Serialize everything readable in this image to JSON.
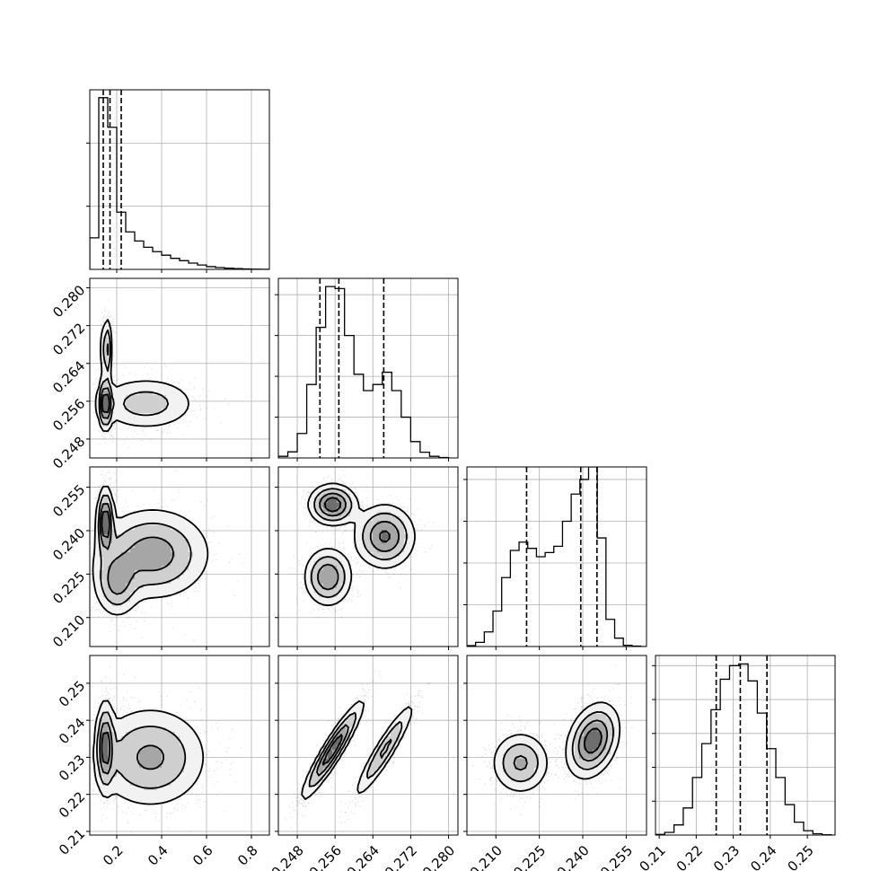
{
  "chart_data": {
    "type": "corner",
    "parameters": 4,
    "grid": true,
    "style": {
      "line_color": "#000000",
      "grid_color": "#b0b0b0",
      "point_color": "#000000",
      "contour_fill_shades": [
        "#f2f2f2",
        "#cfcfcf",
        "#a6a6a6",
        "#6e6e6e"
      ],
      "density_dark": "#000000"
    },
    "axes": [
      {
        "index": 0,
        "range": [
          0.08,
          0.88
        ],
        "ticks": [
          0.2,
          0.4,
          0.6,
          0.8
        ],
        "tick_labels": [
          "0.2",
          "0.4",
          "0.6",
          "0.8"
        ],
        "quantiles": [
          0.14,
          0.17,
          0.22
        ],
        "histogram": {
          "bin_edges": [
            0.08,
            0.1,
            0.12,
            0.14,
            0.16,
            0.18,
            0.2,
            0.22,
            0.24,
            0.26,
            0.28,
            0.3,
            0.32,
            0.34,
            0.36,
            0.38,
            0.4,
            0.42,
            0.44,
            0.46,
            0.48,
            0.5,
            0.52,
            0.54,
            0.56,
            0.58,
            0.6,
            0.62,
            0.64,
            0.66,
            0.68,
            0.7,
            0.72,
            0.74,
            0.76,
            0.78,
            0.8,
            0.82,
            0.84,
            0.86,
            0.88
          ],
          "counts": [
            800,
            800,
            4350,
            4350,
            3600,
            3600,
            1450,
            1450,
            950,
            950,
            720,
            720,
            560,
            560,
            450,
            450,
            360,
            360,
            280,
            280,
            220,
            220,
            160,
            160,
            110,
            110,
            70,
            70,
            45,
            45,
            30,
            30,
            18,
            18,
            10,
            10,
            6,
            6,
            3,
            3
          ],
          "ylim": [
            0,
            4550
          ],
          "yticks": [
            1600,
            3200
          ]
        }
      },
      {
        "index": 1,
        "range": [
          0.244,
          0.282
        ],
        "ticks": [
          0.248,
          0.256,
          0.264,
          0.272,
          0.28
        ],
        "tick_labels": [
          "0.248",
          "0.256",
          "0.264",
          "0.272",
          "0.280"
        ],
        "quantiles": [
          0.2528,
          0.2568,
          0.2663
        ],
        "histogram": {
          "bin_edges": [
            0.244,
            0.246,
            0.248,
            0.25,
            0.252,
            0.254,
            0.256,
            0.258,
            0.26,
            0.262,
            0.264,
            0.266,
            0.268,
            0.27,
            0.272,
            0.274,
            0.276,
            0.278,
            0.28
          ],
          "counts": [
            40,
            150,
            600,
            1800,
            3200,
            4200,
            4150,
            3000,
            2050,
            1650,
            1800,
            2100,
            1650,
            1000,
            400,
            140,
            40,
            10
          ],
          "ylim": [
            0,
            4400
          ],
          "yticks": [
            1000,
            2000,
            3000,
            4000
          ]
        }
      },
      {
        "index": 2,
        "range": [
          0.2,
          0.262
        ],
        "ticks": [
          0.21,
          0.225,
          0.24,
          0.255
        ],
        "tick_labels": [
          "0.210",
          "0.225",
          "0.240",
          "0.255"
        ],
        "quantiles": [
          0.2206,
          0.2393,
          0.2449
        ],
        "histogram": {
          "bin_edges": [
            0.2,
            0.203,
            0.206,
            0.209,
            0.212,
            0.215,
            0.218,
            0.221,
            0.224,
            0.227,
            0.23,
            0.233,
            0.236,
            0.239,
            0.242,
            0.245,
            0.248,
            0.251,
            0.254,
            0.257,
            0.26,
            0.262
          ],
          "counts": [
            20,
            100,
            350,
            850,
            1650,
            2300,
            2500,
            2350,
            2150,
            2250,
            2400,
            3000,
            3650,
            4000,
            4300,
            2600,
            650,
            200,
            30,
            10,
            0
          ],
          "ylim": [
            0,
            4300
          ],
          "yticks": [
            1000,
            2000,
            3000,
            4000
          ]
        }
      },
      {
        "index": 3,
        "range": [
          0.209,
          0.2575
        ],
        "ticks": [
          0.21,
          0.22,
          0.23,
          0.24,
          0.25
        ],
        "tick_labels": [
          "0.21",
          "0.22",
          "0.23",
          "0.24",
          "0.25"
        ],
        "quantiles": [
          0.2254,
          0.2319,
          0.2391
        ],
        "histogram": {
          "bin_edges": [
            0.209,
            0.2115,
            0.214,
            0.2165,
            0.219,
            0.2215,
            0.224,
            0.2265,
            0.229,
            0.2315,
            0.234,
            0.2365,
            0.239,
            0.2415,
            0.244,
            0.2465,
            0.249,
            0.2515,
            0.254,
            0.2565
          ],
          "counts": [
            20,
            80,
            300,
            800,
            1700,
            2700,
            3700,
            4600,
            5000,
            5050,
            4550,
            3600,
            2550,
            1700,
            900,
            380,
            130,
            40,
            10
          ],
          "ylim": [
            0,
            5300
          ],
          "yticks": [
            1000,
            2000,
            3000,
            4000,
            5000
          ]
        }
      }
    ],
    "pairs": [
      {
        "x": 0,
        "y": 1,
        "modes": [
          {
            "mean": [
              0.15,
              0.2555
            ],
            "sd": [
              0.015,
              0.0028
            ],
            "weight": 0.5
          },
          {
            "mean": [
              0.155,
              0.267
            ],
            "sd": [
              0.012,
              0.0035
            ],
            "weight": 0.3
          },
          {
            "mean": [
              0.33,
              0.2555
            ],
            "sd": [
              0.12,
              0.003
            ],
            "weight": 0.2
          }
        ]
      },
      {
        "x": 0,
        "y": 2,
        "modes": [
          {
            "mean": [
              0.15,
              0.243
            ],
            "sd": [
              0.018,
              0.006
            ],
            "weight": 0.45
          },
          {
            "mean": [
              0.2,
              0.222
            ],
            "sd": [
              0.05,
              0.006
            ],
            "weight": 0.25
          },
          {
            "mean": [
              0.36,
              0.232
            ],
            "sd": [
              0.13,
              0.008
            ],
            "weight": 0.3
          }
        ]
      },
      {
        "x": 0,
        "y": 3,
        "modes": [
          {
            "mean": [
              0.15,
              0.233
            ],
            "sd": [
              0.02,
              0.006
            ],
            "weight": 0.6
          },
          {
            "mean": [
              0.35,
              0.23
            ],
            "sd": [
              0.13,
              0.007
            ],
            "weight": 0.4
          }
        ]
      },
      {
        "x": 1,
        "y": 2,
        "modes": [
          {
            "mean": [
              0.2555,
              0.249
            ],
            "sd": [
              0.0025,
              0.0035
            ],
            "weight": 0.38
          },
          {
            "mean": [
              0.2545,
              0.224
            ],
            "sd": [
              0.0025,
              0.005
            ],
            "weight": 0.3
          },
          {
            "mean": [
              0.2665,
              0.238
            ],
            "sd": [
              0.0032,
              0.0055
            ],
            "weight": 0.32
          }
        ]
      },
      {
        "x": 1,
        "y": 3,
        "modes": [
          {
            "mean": [
              0.2555,
              0.232
            ],
            "sd": [
              0.0032,
              0.0065
            ],
            "rho": 0.93,
            "weight": 0.62
          },
          {
            "mean": [
              0.2665,
              0.232
            ],
            "sd": [
              0.0032,
              0.0065
            ],
            "rho": 0.93,
            "weight": 0.38
          }
        ]
      },
      {
        "x": 2,
        "y": 3,
        "modes": [
          {
            "mean": [
              0.2435,
              0.2345
            ],
            "sd": [
              0.0045,
              0.005
            ],
            "rho": 0.3,
            "weight": 0.62
          },
          {
            "mean": [
              0.2185,
              0.2285
            ],
            "sd": [
              0.005,
              0.0042
            ],
            "weight": 0.38
          }
        ]
      }
    ]
  }
}
